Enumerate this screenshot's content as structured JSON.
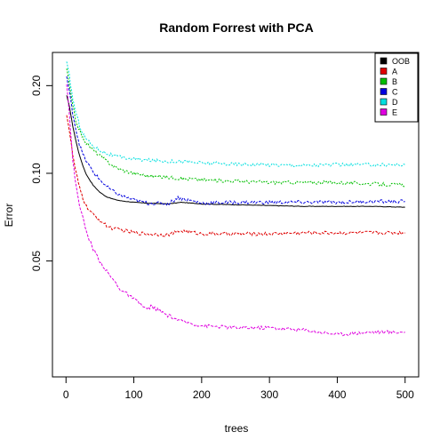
{
  "chart_data": {
    "type": "line",
    "title": "Random Forrest with PCA",
    "xlabel": "trees",
    "ylabel": "Error",
    "xlim": [
      0,
      500
    ],
    "ylim": [
      0.02,
      0.26
    ],
    "y_scale": "log",
    "xticks": [
      "0",
      "100",
      "200",
      "300",
      "400",
      "500"
    ],
    "yticks": [
      "0.05",
      "0.10",
      "0.20"
    ],
    "legend_position": "top-right",
    "legend_labels": [
      "OOB",
      "A",
      "B",
      "C",
      "D",
      "E"
    ],
    "grid": false,
    "series": [
      {
        "name": "OOB",
        "color": "#000000",
        "x": [
          1,
          5,
          10,
          15,
          20,
          25,
          30,
          40,
          50,
          60,
          70,
          80,
          100,
          120,
          150,
          170,
          200,
          250,
          300,
          350,
          400,
          450,
          500
        ],
        "y": [
          0.185,
          0.17,
          0.145,
          0.128,
          0.115,
          0.106,
          0.099,
          0.091,
          0.086,
          0.083,
          0.0815,
          0.0805,
          0.0795,
          0.079,
          0.0785,
          0.0795,
          0.0785,
          0.078,
          0.0775,
          0.077,
          0.077,
          0.077,
          0.0765
        ]
      },
      {
        "name": "A",
        "color": "#DF0000",
        "x": [
          1,
          5,
          10,
          15,
          20,
          25,
          30,
          40,
          50,
          60,
          70,
          80,
          100,
          120,
          150,
          170,
          200,
          250,
          300,
          350,
          400,
          450,
          500
        ],
        "y": [
          0.16,
          0.14,
          0.115,
          0.1,
          0.089,
          0.082,
          0.077,
          0.072,
          0.069,
          0.066,
          0.0645,
          0.064,
          0.0625,
          0.062,
          0.0615,
          0.0635,
          0.062,
          0.062,
          0.062,
          0.0625,
          0.0625,
          0.0625,
          0.0625
        ]
      },
      {
        "name": "B",
        "color": "#00BF00",
        "x": [
          1,
          5,
          10,
          15,
          20,
          25,
          30,
          40,
          50,
          60,
          70,
          80,
          100,
          120,
          150,
          170,
          200,
          250,
          300,
          350,
          400,
          450,
          500
        ],
        "y": [
          0.23,
          0.2,
          0.17,
          0.15,
          0.14,
          0.132,
          0.127,
          0.12,
          0.115,
          0.11,
          0.106,
          0.103,
          0.1,
          0.098,
          0.097,
          0.096,
          0.095,
          0.094,
          0.093,
          0.093,
          0.093,
          0.092,
          0.091
        ]
      },
      {
        "name": "C",
        "color": "#0000DF",
        "x": [
          1,
          5,
          10,
          15,
          20,
          25,
          30,
          40,
          50,
          60,
          70,
          80,
          100,
          120,
          150,
          165,
          180,
          200,
          250,
          300,
          350,
          400,
          450,
          500
        ],
        "y": [
          0.215,
          0.19,
          0.16,
          0.14,
          0.125,
          0.116,
          0.11,
          0.101,
          0.095,
          0.09,
          0.0865,
          0.084,
          0.081,
          0.079,
          0.0785,
          0.0825,
          0.081,
          0.079,
          0.0795,
          0.0795,
          0.0795,
          0.0795,
          0.08,
          0.08
        ]
      },
      {
        "name": "D",
        "color": "#00DFDF",
        "x": [
          1,
          5,
          10,
          15,
          20,
          25,
          30,
          40,
          50,
          60,
          70,
          80,
          100,
          120,
          150,
          170,
          200,
          250,
          300,
          350,
          400,
          450,
          500
        ],
        "y": [
          0.24,
          0.215,
          0.18,
          0.16,
          0.146,
          0.137,
          0.131,
          0.124,
          0.12,
          0.117,
          0.115,
          0.1135,
          0.112,
          0.111,
          0.11,
          0.11,
          0.1085,
          0.1075,
          0.107,
          0.1065,
          0.107,
          0.107,
          0.107
        ]
      },
      {
        "name": "E",
        "color": "#DF00DF",
        "x": [
          1,
          5,
          10,
          15,
          20,
          25,
          30,
          40,
          50,
          60,
          70,
          80,
          100,
          120,
          125,
          150,
          170,
          200,
          250,
          300,
          350,
          400,
          450,
          500
        ],
        "y": [
          0.205,
          0.16,
          0.11,
          0.09,
          0.078,
          0.07,
          0.063,
          0.055,
          0.05,
          0.046,
          0.043,
          0.04,
          0.037,
          0.034,
          0.035,
          0.0325,
          0.031,
          0.03,
          0.0295,
          0.0295,
          0.029,
          0.028,
          0.0285,
          0.0285
        ]
      }
    ]
  }
}
